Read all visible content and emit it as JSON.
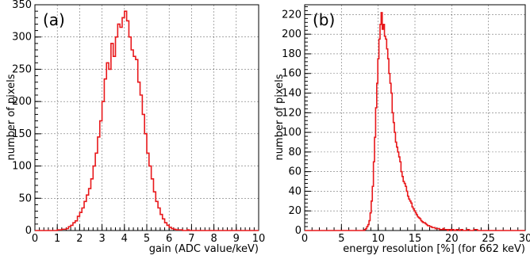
{
  "chart_data": [
    {
      "type": "histogram",
      "panel_label": "(a)",
      "xlabel": "gain (ADC value/keV)",
      "ylabel": "number of pixels",
      "xlim": [
        0,
        10
      ],
      "ylim": [
        0,
        350
      ],
      "xticks": [
        "0",
        "1",
        "2",
        "3",
        "4",
        "5",
        "6",
        "7",
        "8",
        "9",
        "10"
      ],
      "yticks": [
        "0",
        "50",
        "100",
        "150",
        "200",
        "250",
        "300",
        "350"
      ],
      "grid": true,
      "series": [
        {
          "color": "#e8181b",
          "bin_width": 0.1,
          "x": [
            1.0,
            1.1,
            1.2,
            1.3,
            1.4,
            1.5,
            1.6,
            1.7,
            1.8,
            1.9,
            2.0,
            2.1,
            2.2,
            2.3,
            2.4,
            2.5,
            2.6,
            2.7,
            2.8,
            2.9,
            3.0,
            3.1,
            3.2,
            3.3,
            3.4,
            3.5,
            3.6,
            3.7,
            3.8,
            3.9,
            4.0,
            4.1,
            4.2,
            4.3,
            4.4,
            4.5,
            4.6,
            4.7,
            4.8,
            4.9,
            5.0,
            5.1,
            5.2,
            5.3,
            5.4,
            5.5,
            5.6,
            5.7,
            5.8,
            5.9,
            6.0,
            6.1,
            6.2,
            6.3,
            6.4,
            6.5,
            6.6,
            6.7,
            6.8,
            6.9
          ],
          "values": [
            1,
            1,
            2,
            2,
            3,
            6,
            8,
            12,
            15,
            22,
            28,
            35,
            45,
            55,
            65,
            80,
            100,
            120,
            145,
            170,
            200,
            235,
            260,
            250,
            290,
            270,
            300,
            320,
            315,
            330,
            340,
            325,
            300,
            280,
            270,
            265,
            230,
            210,
            180,
            150,
            120,
            100,
            80,
            60,
            45,
            35,
            25,
            18,
            12,
            8,
            5,
            3,
            2,
            1,
            1,
            1,
            0,
            0,
            1,
            0
          ]
        }
      ]
    },
    {
      "type": "histogram",
      "panel_label": "(b)",
      "xlabel": "energy resolution [%] (for 662 keV)",
      "ylabel": "number of pixels",
      "xlim": [
        0,
        30
      ],
      "ylim": [
        0,
        230
      ],
      "xticks": [
        "0",
        "5",
        "10",
        "15",
        "20",
        "25",
        "30"
      ],
      "yticks": [
        "0",
        "20",
        "40",
        "60",
        "80",
        "100",
        "120",
        "140",
        "160",
        "180",
        "200",
        "220"
      ],
      "grid": true,
      "series": [
        {
          "color": "#e8181b",
          "bin_width": 0.15,
          "x": [
            8.0,
            8.15,
            8.3,
            8.45,
            8.6,
            8.75,
            8.9,
            9.05,
            9.2,
            9.35,
            9.5,
            9.65,
            9.8,
            9.95,
            10.1,
            10.25,
            10.4,
            10.55,
            10.7,
            10.85,
            11.0,
            11.15,
            11.3,
            11.45,
            11.6,
            11.75,
            11.9,
            12.05,
            12.2,
            12.35,
            12.5,
            12.65,
            12.8,
            12.95,
            13.1,
            13.25,
            13.4,
            13.55,
            13.7,
            13.85,
            14.0,
            14.15,
            14.3,
            14.45,
            14.6,
            14.75,
            14.9,
            15.05,
            15.2,
            15.35,
            15.5,
            15.65,
            15.8,
            15.95,
            16.1,
            16.25,
            16.4,
            16.55,
            16.7,
            16.85,
            17.0,
            17.15,
            17.3,
            17.45,
            17.6,
            17.75,
            17.9,
            18.05,
            18.2,
            18.35,
            18.5,
            18.65,
            18.8,
            18.95,
            19.1,
            19.25,
            19.4,
            19.55,
            19.7,
            19.85,
            20.0,
            20.3,
            20.6,
            20.9,
            21.2,
            21.5,
            21.8,
            22.1,
            22.4,
            22.7,
            23.0,
            23.5,
            24.0,
            25.0,
            26.0,
            27.0
          ],
          "values": [
            0,
            1,
            2,
            4,
            6,
            10,
            18,
            30,
            45,
            70,
            95,
            125,
            150,
            175,
            195,
            210,
            222,
            205,
            210,
            198,
            195,
            185,
            175,
            160,
            150,
            140,
            120,
            110,
            100,
            90,
            85,
            80,
            75,
            70,
            60,
            55,
            50,
            48,
            45,
            40,
            35,
            32,
            30,
            28,
            24,
            22,
            20,
            18,
            16,
            14,
            13,
            12,
            10,
            9,
            8,
            8,
            7,
            6,
            5,
            5,
            4,
            4,
            3,
            3,
            3,
            2,
            2,
            2,
            2,
            1,
            1,
            1,
            2,
            1,
            1,
            1,
            0,
            1,
            1,
            0,
            1,
            0,
            1,
            0,
            1,
            0,
            0,
            1,
            0,
            0,
            1,
            0,
            0,
            0,
            0,
            0
          ]
        }
      ]
    }
  ]
}
